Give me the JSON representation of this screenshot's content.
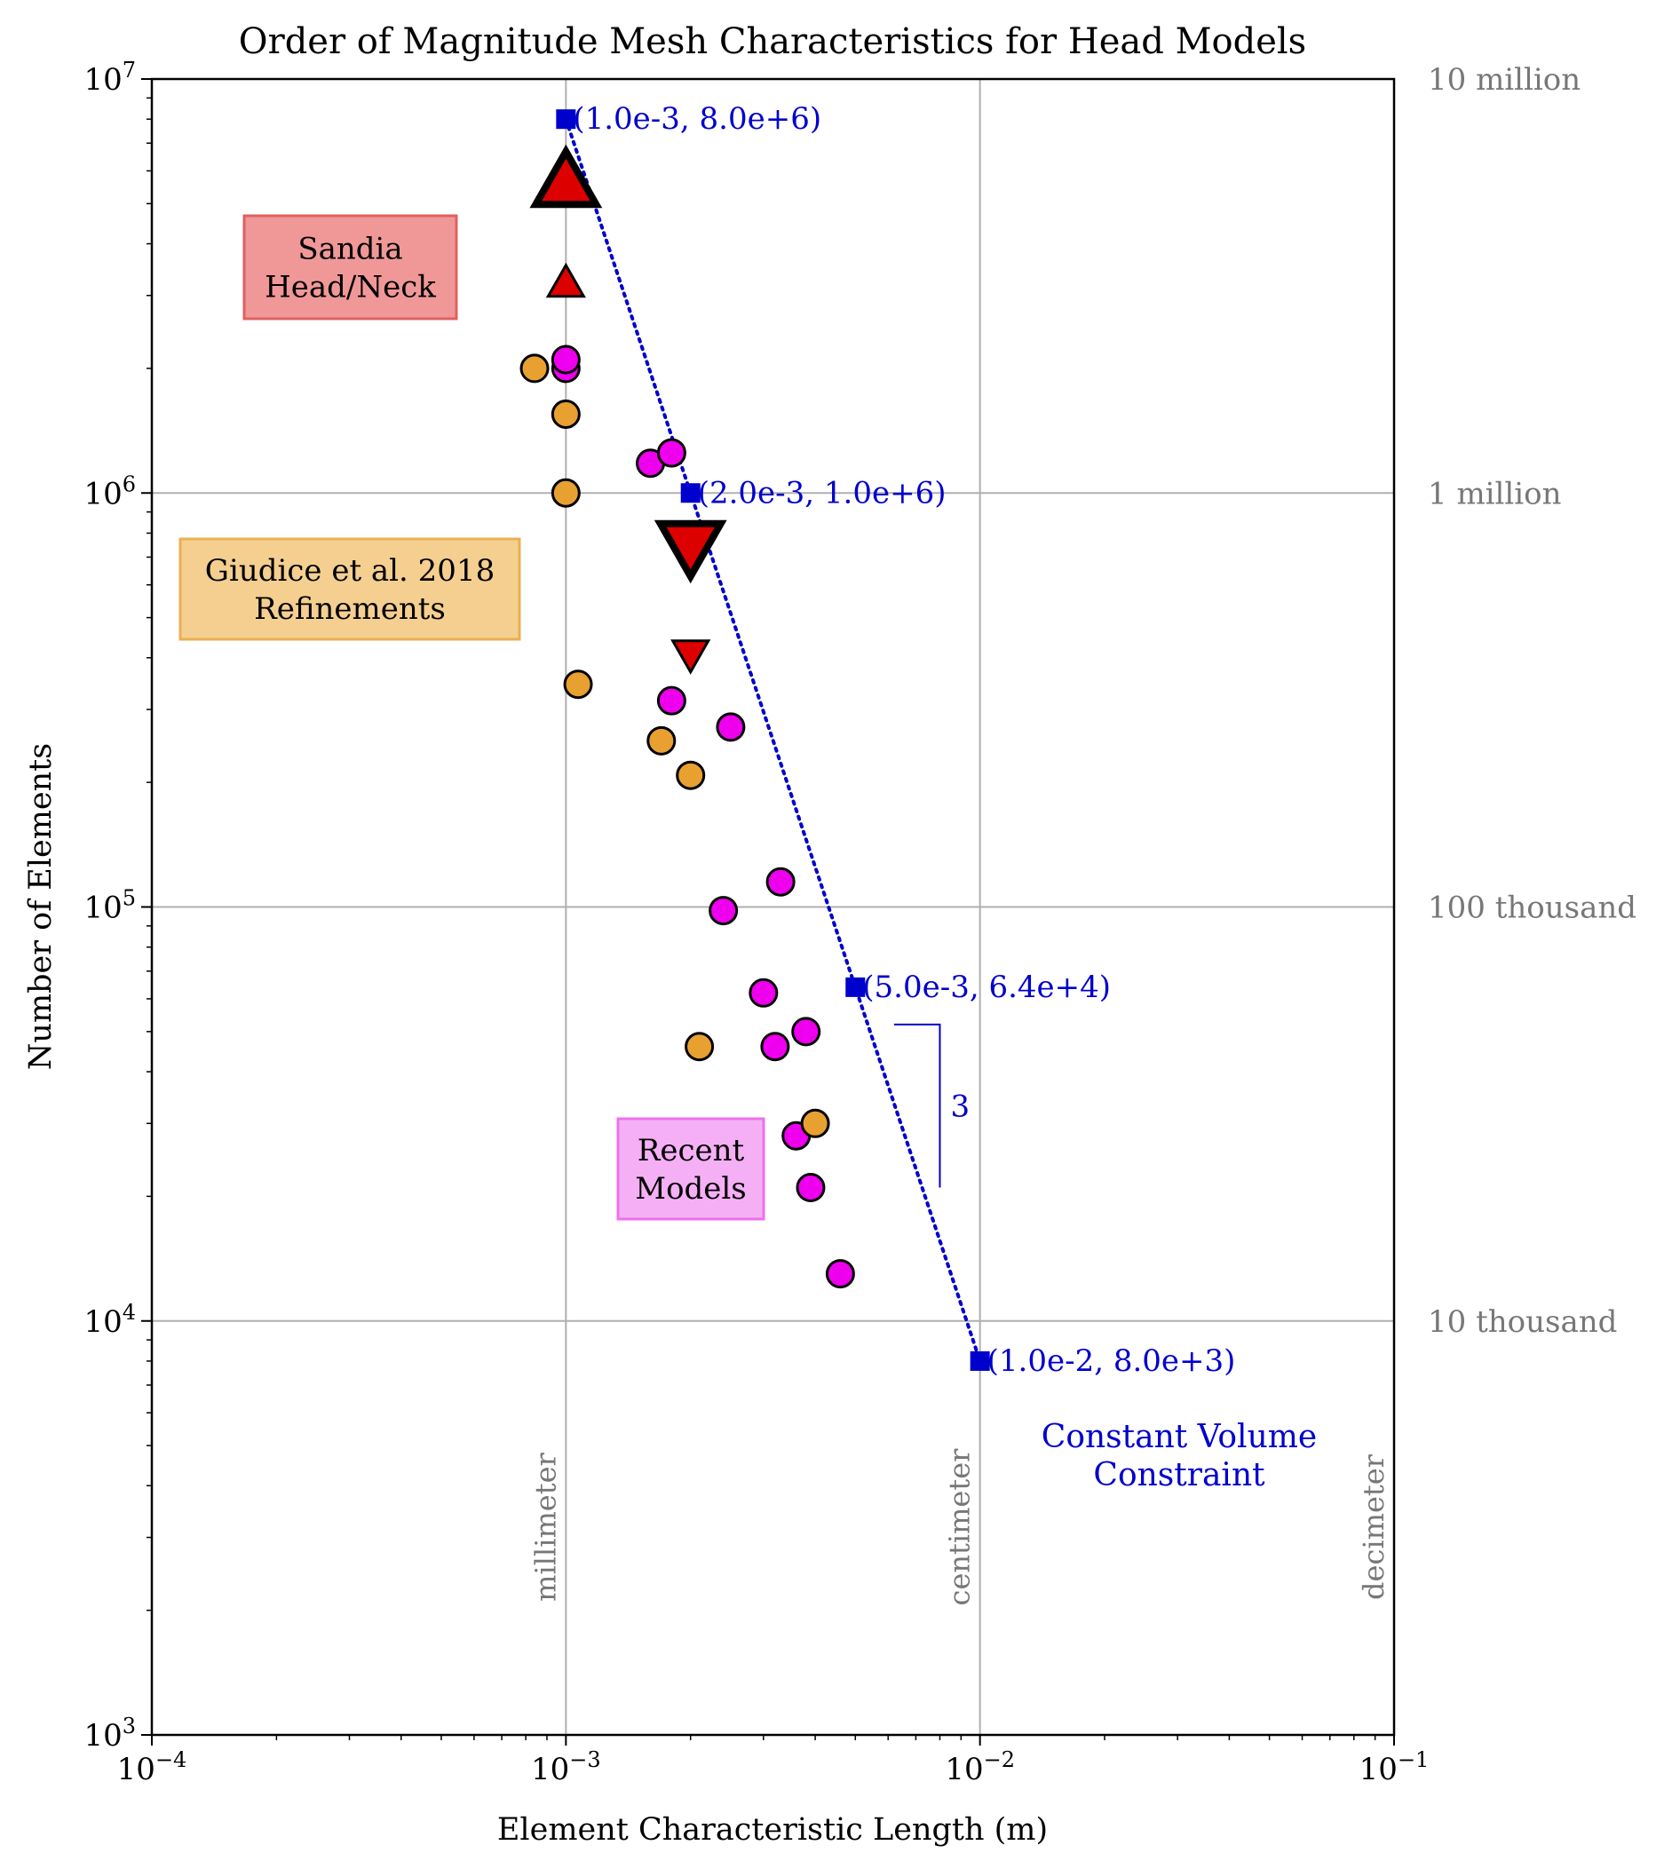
{
  "chart_data": {
    "type": "scatter",
    "title": "Order of Magnitude Mesh Characteristics for Head Models",
    "xlabel": "Element Characteristic Length (m)",
    "ylabel": "Number of Elements",
    "xscale": "log",
    "yscale": "log",
    "xlim": [
      0.0001,
      0.1
    ],
    "ylim": [
      1000,
      10000000
    ],
    "grid": true,
    "x_ticks": [
      {
        "value": 0.0001,
        "base": "10",
        "exp": "−4"
      },
      {
        "value": 0.001,
        "base": "10",
        "exp": "−3"
      },
      {
        "value": 0.01,
        "base": "10",
        "exp": "−2"
      },
      {
        "value": 0.1,
        "base": "10",
        "exp": "−1"
      }
    ],
    "y_ticks": [
      {
        "value": 1000,
        "base": "10",
        "exp": "3"
      },
      {
        "value": 10000,
        "base": "10",
        "exp": "4"
      },
      {
        "value": 100000,
        "base": "10",
        "exp": "5"
      },
      {
        "value": 1000000,
        "base": "10",
        "exp": "6"
      },
      {
        "value": 10000000,
        "base": "10",
        "exp": "7"
      }
    ],
    "right_axis_labels": [
      {
        "value": 10000000,
        "text": "10 million"
      },
      {
        "value": 1000000,
        "text": "1 million"
      },
      {
        "value": 100000,
        "text": "100 thousand"
      },
      {
        "value": 10000,
        "text": "10 thousand"
      }
    ],
    "scale_labels": [
      {
        "x": 0.001,
        "text": "millimeter"
      },
      {
        "x": 0.01,
        "text": "centimeter"
      },
      {
        "x": 0.1,
        "text": "decimeter"
      }
    ],
    "colors": {
      "recent": "#ee00ee",
      "giudice": "#e8a030",
      "sandia": "#dd0000",
      "constraint": "#0000cc",
      "grid": "#b0b0b0",
      "scale_text": "#777777"
    },
    "series": [
      {
        "name": "Recent Models",
        "marker": "circle",
        "color": "#ee00ee",
        "points": [
          [
            0.001,
            2000000
          ],
          [
            0.001,
            2100000
          ],
          [
            0.0016,
            1180000
          ],
          [
            0.0018,
            1250000
          ],
          [
            0.0018,
            315000
          ],
          [
            0.0025,
            272000
          ],
          [
            0.0033,
            115000
          ],
          [
            0.0024,
            98000
          ],
          [
            0.003,
            62000
          ],
          [
            0.0032,
            46000
          ],
          [
            0.0038,
            50000
          ],
          [
            0.0036,
            28000
          ],
          [
            0.0039,
            21000
          ],
          [
            0.0046,
            13000
          ]
        ]
      },
      {
        "name": "Giudice et al. 2018 Refinements",
        "marker": "circle",
        "color": "#e8a030",
        "points": [
          [
            0.00084,
            2000000
          ],
          [
            0.001,
            1550000
          ],
          [
            0.001,
            1000000
          ],
          [
            0.00107,
            345000
          ],
          [
            0.0017,
            252000
          ],
          [
            0.002,
            208000
          ],
          [
            0.0021,
            46000
          ],
          [
            0.004,
            30000
          ]
        ]
      },
      {
        "name": "Sandia Head/Neck",
        "marker": "triangle",
        "color": "#dd0000",
        "points": [
          {
            "x": 0.001,
            "y": 5600000,
            "dir": "up",
            "big": true
          },
          {
            "x": 0.001,
            "y": 3200000,
            "dir": "up",
            "big": false
          },
          {
            "x": 0.002,
            "y": 750000,
            "dir": "down",
            "big": true
          },
          {
            "x": 0.002,
            "y": 410000,
            "dir": "down",
            "big": false
          }
        ]
      }
    ],
    "constraint_line": {
      "points": [
        [
          0.001,
          8000000
        ],
        [
          0.002,
          1000000
        ],
        [
          0.005,
          64000
        ],
        [
          0.01,
          8000
        ]
      ],
      "labels": [
        "(1.0e-3, 8.0e+6)",
        "(2.0e-3, 1.0e+6)",
        "(5.0e-3, 6.4e+4)",
        "(1.0e-2, 8.0e+3)"
      ],
      "slope_label": "3",
      "slope_bracket": {
        "x_start": 0.0062,
        "x_end": 0.008,
        "y_top": 52000,
        "y_bottom": 21000
      },
      "caption": [
        "Constant Volume",
        "Constraint"
      ]
    },
    "annotations": [
      {
        "name": "sandia",
        "lines": [
          "Sandia",
          "Head/Neck"
        ],
        "fill": "#f09898",
        "edge": "#e06060"
      },
      {
        "name": "giudice",
        "lines": [
          "Giudice et al. 2018",
          "Refinements"
        ],
        "fill": "#f4cf90",
        "edge": "#e8b050"
      },
      {
        "name": "recent",
        "lines": [
          "Recent",
          "Models"
        ],
        "fill": "#f5b0f5",
        "edge": "#ee70ee"
      }
    ]
  }
}
